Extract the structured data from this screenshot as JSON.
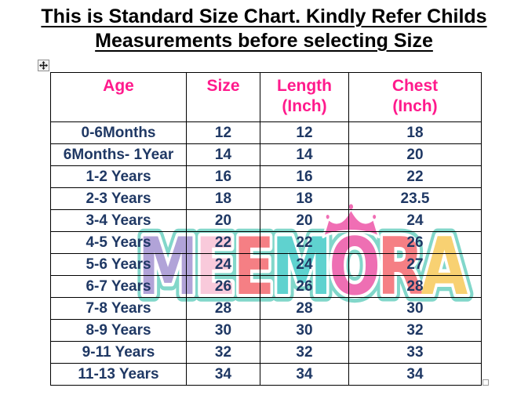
{
  "title": {
    "line1": "This is Standard Size Chart. Kindly Refer Childs",
    "line2": "Measurements before selecting Size"
  },
  "table": {
    "headers": [
      {
        "line1": "Age",
        "line2": ""
      },
      {
        "line1": "Size",
        "line2": ""
      },
      {
        "line1": "Length",
        "line2": "(Inch)"
      },
      {
        "line1": "Chest",
        "line2": "(Inch)"
      }
    ],
    "columns": [
      "age",
      "size",
      "length_inch",
      "chest_inch"
    ],
    "rows": [
      [
        "0-6Months",
        "12",
        "12",
        "18"
      ],
      [
        "6Months- 1Year",
        "14",
        "14",
        "20"
      ],
      [
        "1-2 Years",
        "16",
        "16",
        "22"
      ],
      [
        "2-3 Years",
        "18",
        "18",
        "23.5"
      ],
      [
        "3-4 Years",
        "20",
        "20",
        "24"
      ],
      [
        "4-5 Years",
        "22",
        "22",
        "26"
      ],
      [
        "5-6 Years",
        "24",
        "24",
        "27"
      ],
      [
        "6-7 Years",
        "26",
        "26",
        "28"
      ],
      [
        "7-8 Years",
        "28",
        "28",
        "30"
      ],
      [
        "8-9 Years",
        "30",
        "30",
        "32"
      ],
      [
        "9-11 Years",
        "32",
        "32",
        "33"
      ],
      [
        "11-13 Years",
        "34",
        "34",
        "34"
      ]
    ]
  },
  "watermark": {
    "text": "MEEMORA",
    "letters": [
      {
        "char": "M",
        "color": "#b1a3d8"
      },
      {
        "char": "E",
        "color": "#f9cadb"
      },
      {
        "char": "E",
        "color": "#f57f84"
      },
      {
        "char": "M",
        "color": "#5fd2cf"
      },
      {
        "char": "O",
        "color": "#ee6fb3"
      },
      {
        "char": "R",
        "color": "#f57f84"
      },
      {
        "char": "A",
        "color": "#f8d172"
      }
    ],
    "outline_color": "#82d7ca",
    "inner_outline_color": "#ffffff",
    "crown_color": "#f06eb4"
  },
  "icons": {
    "move_handle": "four-way-arrow-icon",
    "resize_handle": "resize-square-icon"
  },
  "colors": {
    "header_text": "#ff1a8c",
    "cell_text": "#1f3864",
    "table_border": "#000000",
    "title_text": "#000000"
  }
}
